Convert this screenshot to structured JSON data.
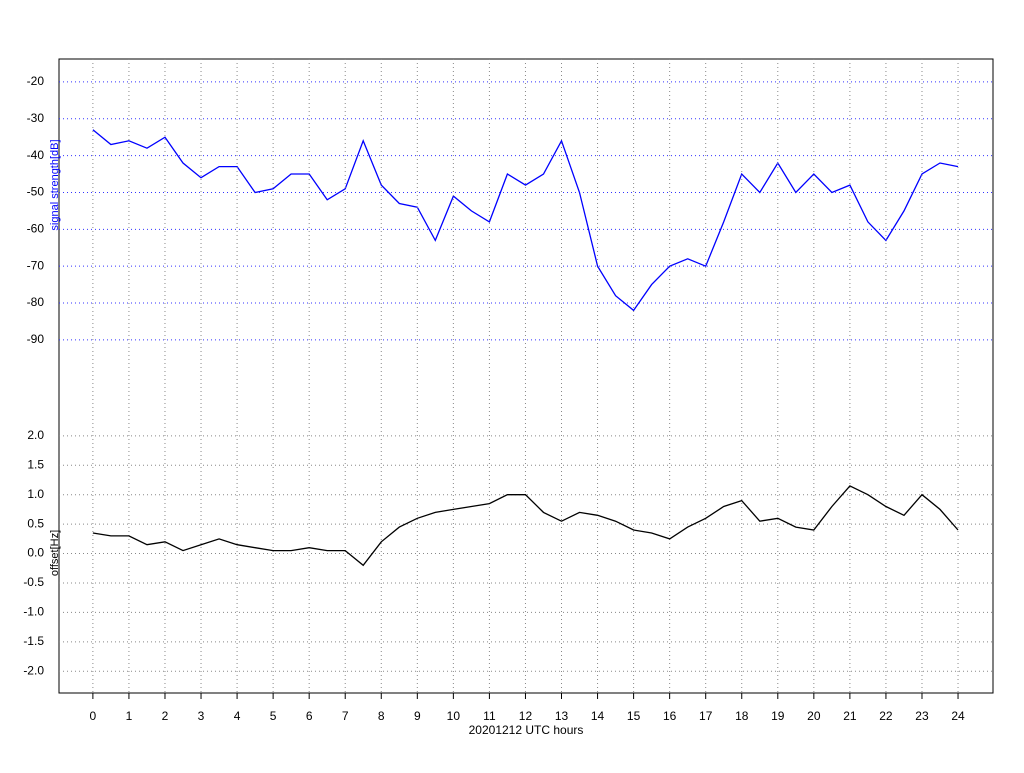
{
  "chart_data": [
    {
      "type": "line",
      "y_label": "signal strength[dB]",
      "xlim": [
        -0.94,
        24.97
      ],
      "ylim": [
        -106.3,
        -13.8
      ],
      "yticks": [
        -20,
        -30,
        -40,
        -50,
        -60,
        -70,
        -80,
        -90
      ],
      "grid": true,
      "x": [
        0,
        0.5,
        1,
        1.5,
        2,
        2.5,
        3,
        3.5,
        4,
        4.5,
        5,
        5.5,
        6,
        6.5,
        7,
        7.5,
        8,
        8.5,
        9,
        9.5,
        10,
        10.5,
        11,
        11.5,
        12,
        12.5,
        13,
        13.5,
        14,
        14.5,
        15,
        15.5,
        16,
        16.5,
        17,
        17.5,
        18,
        18.5,
        19,
        19.5,
        20,
        20.5,
        21,
        21.5,
        22,
        22.5,
        23,
        23.5,
        24
      ],
      "series": [
        {
          "color": "#0000ff",
          "values": [
            -33,
            -37,
            -36,
            -38,
            -35,
            -42,
            -46,
            -43,
            -43,
            -50,
            -49,
            -45,
            -45,
            -52,
            -49,
            -36,
            -48,
            -53,
            -54,
            -63,
            -51,
            -55,
            -58,
            -45,
            -48,
            -45,
            -36,
            -50,
            -70,
            -78,
            -82,
            -75,
            -70,
            -68,
            -70,
            -58,
            -45,
            -50,
            -42,
            -50,
            -45,
            -50,
            -48,
            -58,
            -63,
            -55,
            -45,
            -42,
            -43
          ]
        }
      ]
    },
    {
      "type": "line",
      "y_label": "offset[Hz]",
      "x_label": "20201212 UTC hours",
      "xlim": [
        -0.94,
        24.97
      ],
      "ylim": [
        -2.37,
        2.61
      ],
      "xticks": [
        0,
        1,
        2,
        3,
        4,
        5,
        6,
        7,
        8,
        9,
        10,
        11,
        12,
        13,
        14,
        15,
        16,
        17,
        18,
        19,
        20,
        21,
        22,
        23,
        24
      ],
      "yticks": [
        {
          "value": 2,
          "label": "2.0"
        },
        1.5,
        {
          "value": 1,
          "label": "1.0"
        },
        0.5,
        {
          "value": 0,
          "label": "0.0"
        },
        -0.5,
        {
          "value": -1,
          "label": "-1.0"
        },
        -1.5,
        {
          "value": -2,
          "label": "-2.0"
        }
      ],
      "grid": true,
      "x": [
        0,
        0.5,
        1,
        1.5,
        2,
        2.5,
        3,
        3.5,
        4,
        4.5,
        5,
        5.5,
        6,
        6.5,
        7,
        7.5,
        8,
        8.5,
        9,
        9.5,
        10,
        10.5,
        11,
        11.5,
        12,
        12.5,
        13,
        13.5,
        14,
        14.5,
        15,
        15.5,
        16,
        16.5,
        17,
        17.5,
        18,
        18.5,
        19,
        19.5,
        20,
        20.5,
        21,
        21.5,
        22,
        22.5,
        23,
        23.5,
        24
      ],
      "series": [
        {
          "color": "#000000",
          "values": [
            0.35,
            0.3,
            0.3,
            0.15,
            0.2,
            0.05,
            0.15,
            0.25,
            0.15,
            0.1,
            0.05,
            0.05,
            0.1,
            0.05,
            0.05,
            -0.2,
            0.2,
            0.45,
            0.6,
            0.7,
            0.75,
            0.8,
            0.85,
            1.0,
            1.0,
            0.7,
            0.55,
            0.7,
            0.65,
            0.55,
            0.4,
            0.35,
            0.25,
            0.45,
            0.6,
            0.8,
            0.9,
            0.55,
            0.6,
            0.45,
            0.4,
            0.8,
            1.15,
            1.0,
            0.8,
            0.65,
            1.0,
            0.75,
            0.4
          ]
        }
      ]
    }
  ]
}
